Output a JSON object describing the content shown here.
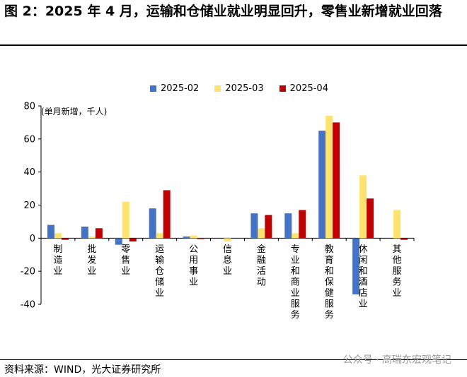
{
  "header": {
    "title": "图 2：2025 年 4 月，运输和仓储业就业明显回升，零售业新增就业回落"
  },
  "footer": {
    "source": "资料来源：WIND，光大证券研究所",
    "watermark": "公众号 · 高瑞东宏观笔记"
  },
  "chart_data": {
    "type": "bar",
    "unit_note": "(单月新增，千人)",
    "categories": [
      "制造业",
      "批发业",
      "零售业",
      "运输仓储业",
      "公用事业",
      "信息业",
      "金融活动",
      "专业和商业服务",
      "教育和保健服务",
      "休闲和酒店业",
      "其他服务业"
    ],
    "series": [
      {
        "name": "2025-02",
        "color": "#4472C4",
        "values": [
          8,
          7,
          -4,
          18,
          1,
          0,
          15,
          15,
          65,
          -34,
          0
        ]
      },
      {
        "name": "2025-03",
        "color": "#FFE36E",
        "values": [
          3,
          1,
          22,
          3,
          1.5,
          -2,
          6,
          3,
          74,
          38,
          17
        ]
      },
      {
        "name": "2025-04",
        "color": "#C00000",
        "values": [
          -1,
          6,
          -2,
          29,
          -0.5,
          0,
          14,
          17,
          70,
          24,
          -1
        ]
      }
    ],
    "ylim": [
      -40,
      80
    ],
    "yticks": [
      -40,
      -20,
      0,
      20,
      40,
      60,
      80
    ],
    "grid": false,
    "legend": "top"
  }
}
